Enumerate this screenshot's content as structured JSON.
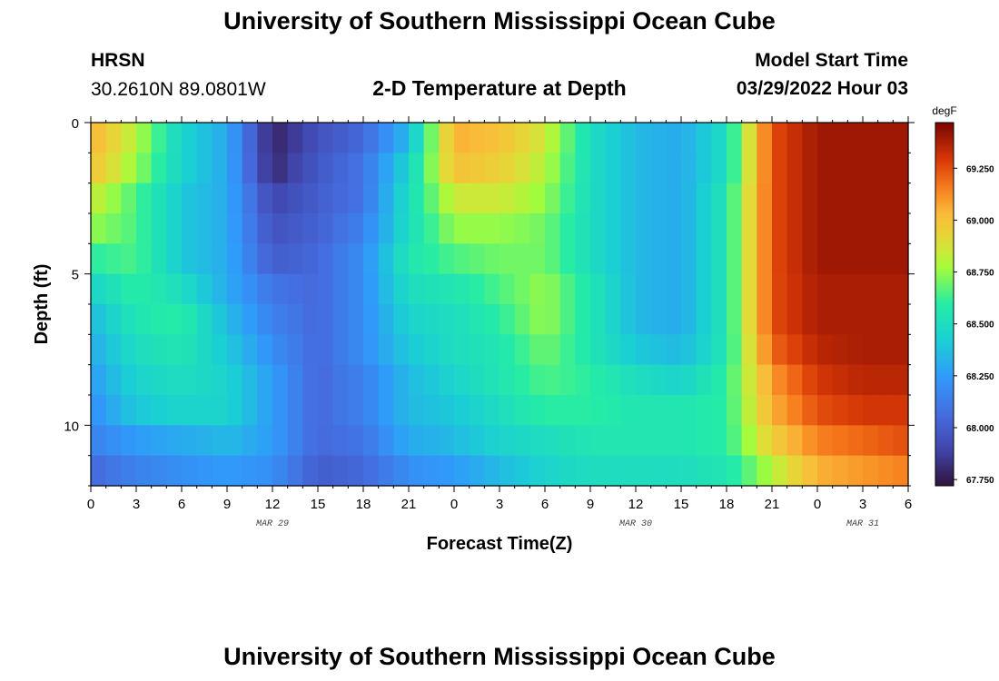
{
  "page": {
    "title": "University of Southern Mississippi Ocean Cube",
    "title_bottom": "University of Southern Mississippi Ocean Cube",
    "station_name": "HRSN",
    "station_coords": "30.2610N  89.0801W",
    "subtitle": "2-D Temperature at Depth",
    "model_start_label": "Model Start Time",
    "model_start_value": "03/29/2022 Hour 03"
  },
  "chart_data": {
    "type": "heatmap",
    "title": "2-D Temperature at Depth",
    "xlabel": "Forecast Time(Z)",
    "ylabel": "Depth (ft)",
    "x_start": "03/29/2022 00Z",
    "x_end": "03/31/2022 06Z",
    "xlim_hours": [
      0,
      54
    ],
    "ylim": [
      0,
      12
    ],
    "x_ticks": [
      {
        "hour": 0,
        "label": "0"
      },
      {
        "hour": 3,
        "label": "3"
      },
      {
        "hour": 6,
        "label": "6"
      },
      {
        "hour": 9,
        "label": "9"
      },
      {
        "hour": 12,
        "label": "12"
      },
      {
        "hour": 15,
        "label": "15"
      },
      {
        "hour": 18,
        "label": "18"
      },
      {
        "hour": 21,
        "label": "21"
      },
      {
        "hour": 24,
        "label": "0"
      },
      {
        "hour": 27,
        "label": "3"
      },
      {
        "hour": 30,
        "label": "6"
      },
      {
        "hour": 33,
        "label": "9"
      },
      {
        "hour": 36,
        "label": "12"
      },
      {
        "hour": 39,
        "label": "15"
      },
      {
        "hour": 42,
        "label": "18"
      },
      {
        "hour": 45,
        "label": "21"
      },
      {
        "hour": 48,
        "label": "0"
      },
      {
        "hour": 51,
        "label": "3"
      },
      {
        "hour": 54,
        "label": "6"
      }
    ],
    "date_labels": [
      {
        "hour": 12,
        "label": "MAR 29"
      },
      {
        "hour": 36,
        "label": "MAR 30"
      },
      {
        "hour": 51,
        "label": "MAR 31"
      }
    ],
    "y_ticks": [
      {
        "depth": 0,
        "label": "0"
      },
      {
        "depth": 5,
        "label": "5"
      },
      {
        "depth": 10,
        "label": "10"
      }
    ],
    "colorbar": {
      "unit": "degF",
      "min": 67.72,
      "max": 69.47,
      "ticks": [
        {
          "value": 67.75,
          "label": "67.750"
        },
        {
          "value": 68.0,
          "label": "68.000"
        },
        {
          "value": 68.25,
          "label": "68.250"
        },
        {
          "value": 68.5,
          "label": "68.500"
        },
        {
          "value": 68.75,
          "label": "68.750"
        },
        {
          "value": 69.0,
          "label": "69.000"
        },
        {
          "value": 69.25,
          "label": "69.250"
        }
      ]
    },
    "grid": false,
    "depth_rows_ft": [
      0.5,
      1.5,
      2.5,
      3.5,
      4.5,
      5.5,
      6.5,
      7.5,
      8.5,
      9.5,
      10.5,
      11.5
    ],
    "profile_hours": [
      0,
      3,
      6,
      9,
      12,
      15,
      18,
      21,
      24,
      27,
      30,
      33,
      36,
      39,
      42,
      45,
      48,
      51,
      54
    ],
    "temperature_degF": [
      [
        69.05,
        68.8,
        68.45,
        68.3,
        67.78,
        67.95,
        68.05,
        68.35,
        69.05,
        69.0,
        68.85,
        68.5,
        68.35,
        68.3,
        68.5,
        69.25,
        69.4,
        69.4,
        69.4
      ],
      [
        69.0,
        68.75,
        68.45,
        68.3,
        67.8,
        67.98,
        68.1,
        68.45,
        69.0,
        68.95,
        68.8,
        68.5,
        68.35,
        68.3,
        68.5,
        69.25,
        69.4,
        69.4,
        69.4
      ],
      [
        68.85,
        68.65,
        68.4,
        68.3,
        67.9,
        68.0,
        68.1,
        68.5,
        68.85,
        68.85,
        68.75,
        68.5,
        68.35,
        68.3,
        68.55,
        69.25,
        69.4,
        69.4,
        69.4
      ],
      [
        68.75,
        68.65,
        68.4,
        68.3,
        67.95,
        68.02,
        68.15,
        68.5,
        68.75,
        68.75,
        68.7,
        68.5,
        68.35,
        68.3,
        68.55,
        69.25,
        69.4,
        69.4,
        69.4
      ],
      [
        68.6,
        68.65,
        68.4,
        68.3,
        68.0,
        68.05,
        68.2,
        68.55,
        68.65,
        68.7,
        68.7,
        68.5,
        68.35,
        68.3,
        68.55,
        69.25,
        69.4,
        69.4,
        69.4
      ],
      [
        68.45,
        68.6,
        68.5,
        68.3,
        68.1,
        68.05,
        68.2,
        68.5,
        68.55,
        68.65,
        68.75,
        68.55,
        68.35,
        68.3,
        68.55,
        69.25,
        69.38,
        69.38,
        69.38
      ],
      [
        68.35,
        68.55,
        68.6,
        68.35,
        68.15,
        68.05,
        68.2,
        68.45,
        68.5,
        68.6,
        68.75,
        68.55,
        68.35,
        68.3,
        68.55,
        69.25,
        69.38,
        69.38,
        69.38
      ],
      [
        68.3,
        68.5,
        68.55,
        68.4,
        68.2,
        68.05,
        68.2,
        68.4,
        68.5,
        68.55,
        68.7,
        68.55,
        68.4,
        68.35,
        68.55,
        69.2,
        69.35,
        69.38,
        69.38
      ],
      [
        68.25,
        68.45,
        68.5,
        68.45,
        68.25,
        68.05,
        68.15,
        68.35,
        68.45,
        68.55,
        68.65,
        68.6,
        68.5,
        68.45,
        68.6,
        69.1,
        69.3,
        69.35,
        69.35
      ],
      [
        68.2,
        68.4,
        68.45,
        68.45,
        68.25,
        68.05,
        68.15,
        68.35,
        68.4,
        68.5,
        68.6,
        68.6,
        68.55,
        68.55,
        68.6,
        69.05,
        69.25,
        69.3,
        69.3
      ],
      [
        68.15,
        68.25,
        68.3,
        68.35,
        68.25,
        68.05,
        68.1,
        68.3,
        68.35,
        68.45,
        68.5,
        68.55,
        68.55,
        68.55,
        68.6,
        68.95,
        69.15,
        69.2,
        69.25
      ],
      [
        68.05,
        68.15,
        68.2,
        68.25,
        68.2,
        68.0,
        68.05,
        68.2,
        68.25,
        68.35,
        68.45,
        68.5,
        68.5,
        68.5,
        68.55,
        68.8,
        69.05,
        69.1,
        69.15
      ]
    ]
  }
}
